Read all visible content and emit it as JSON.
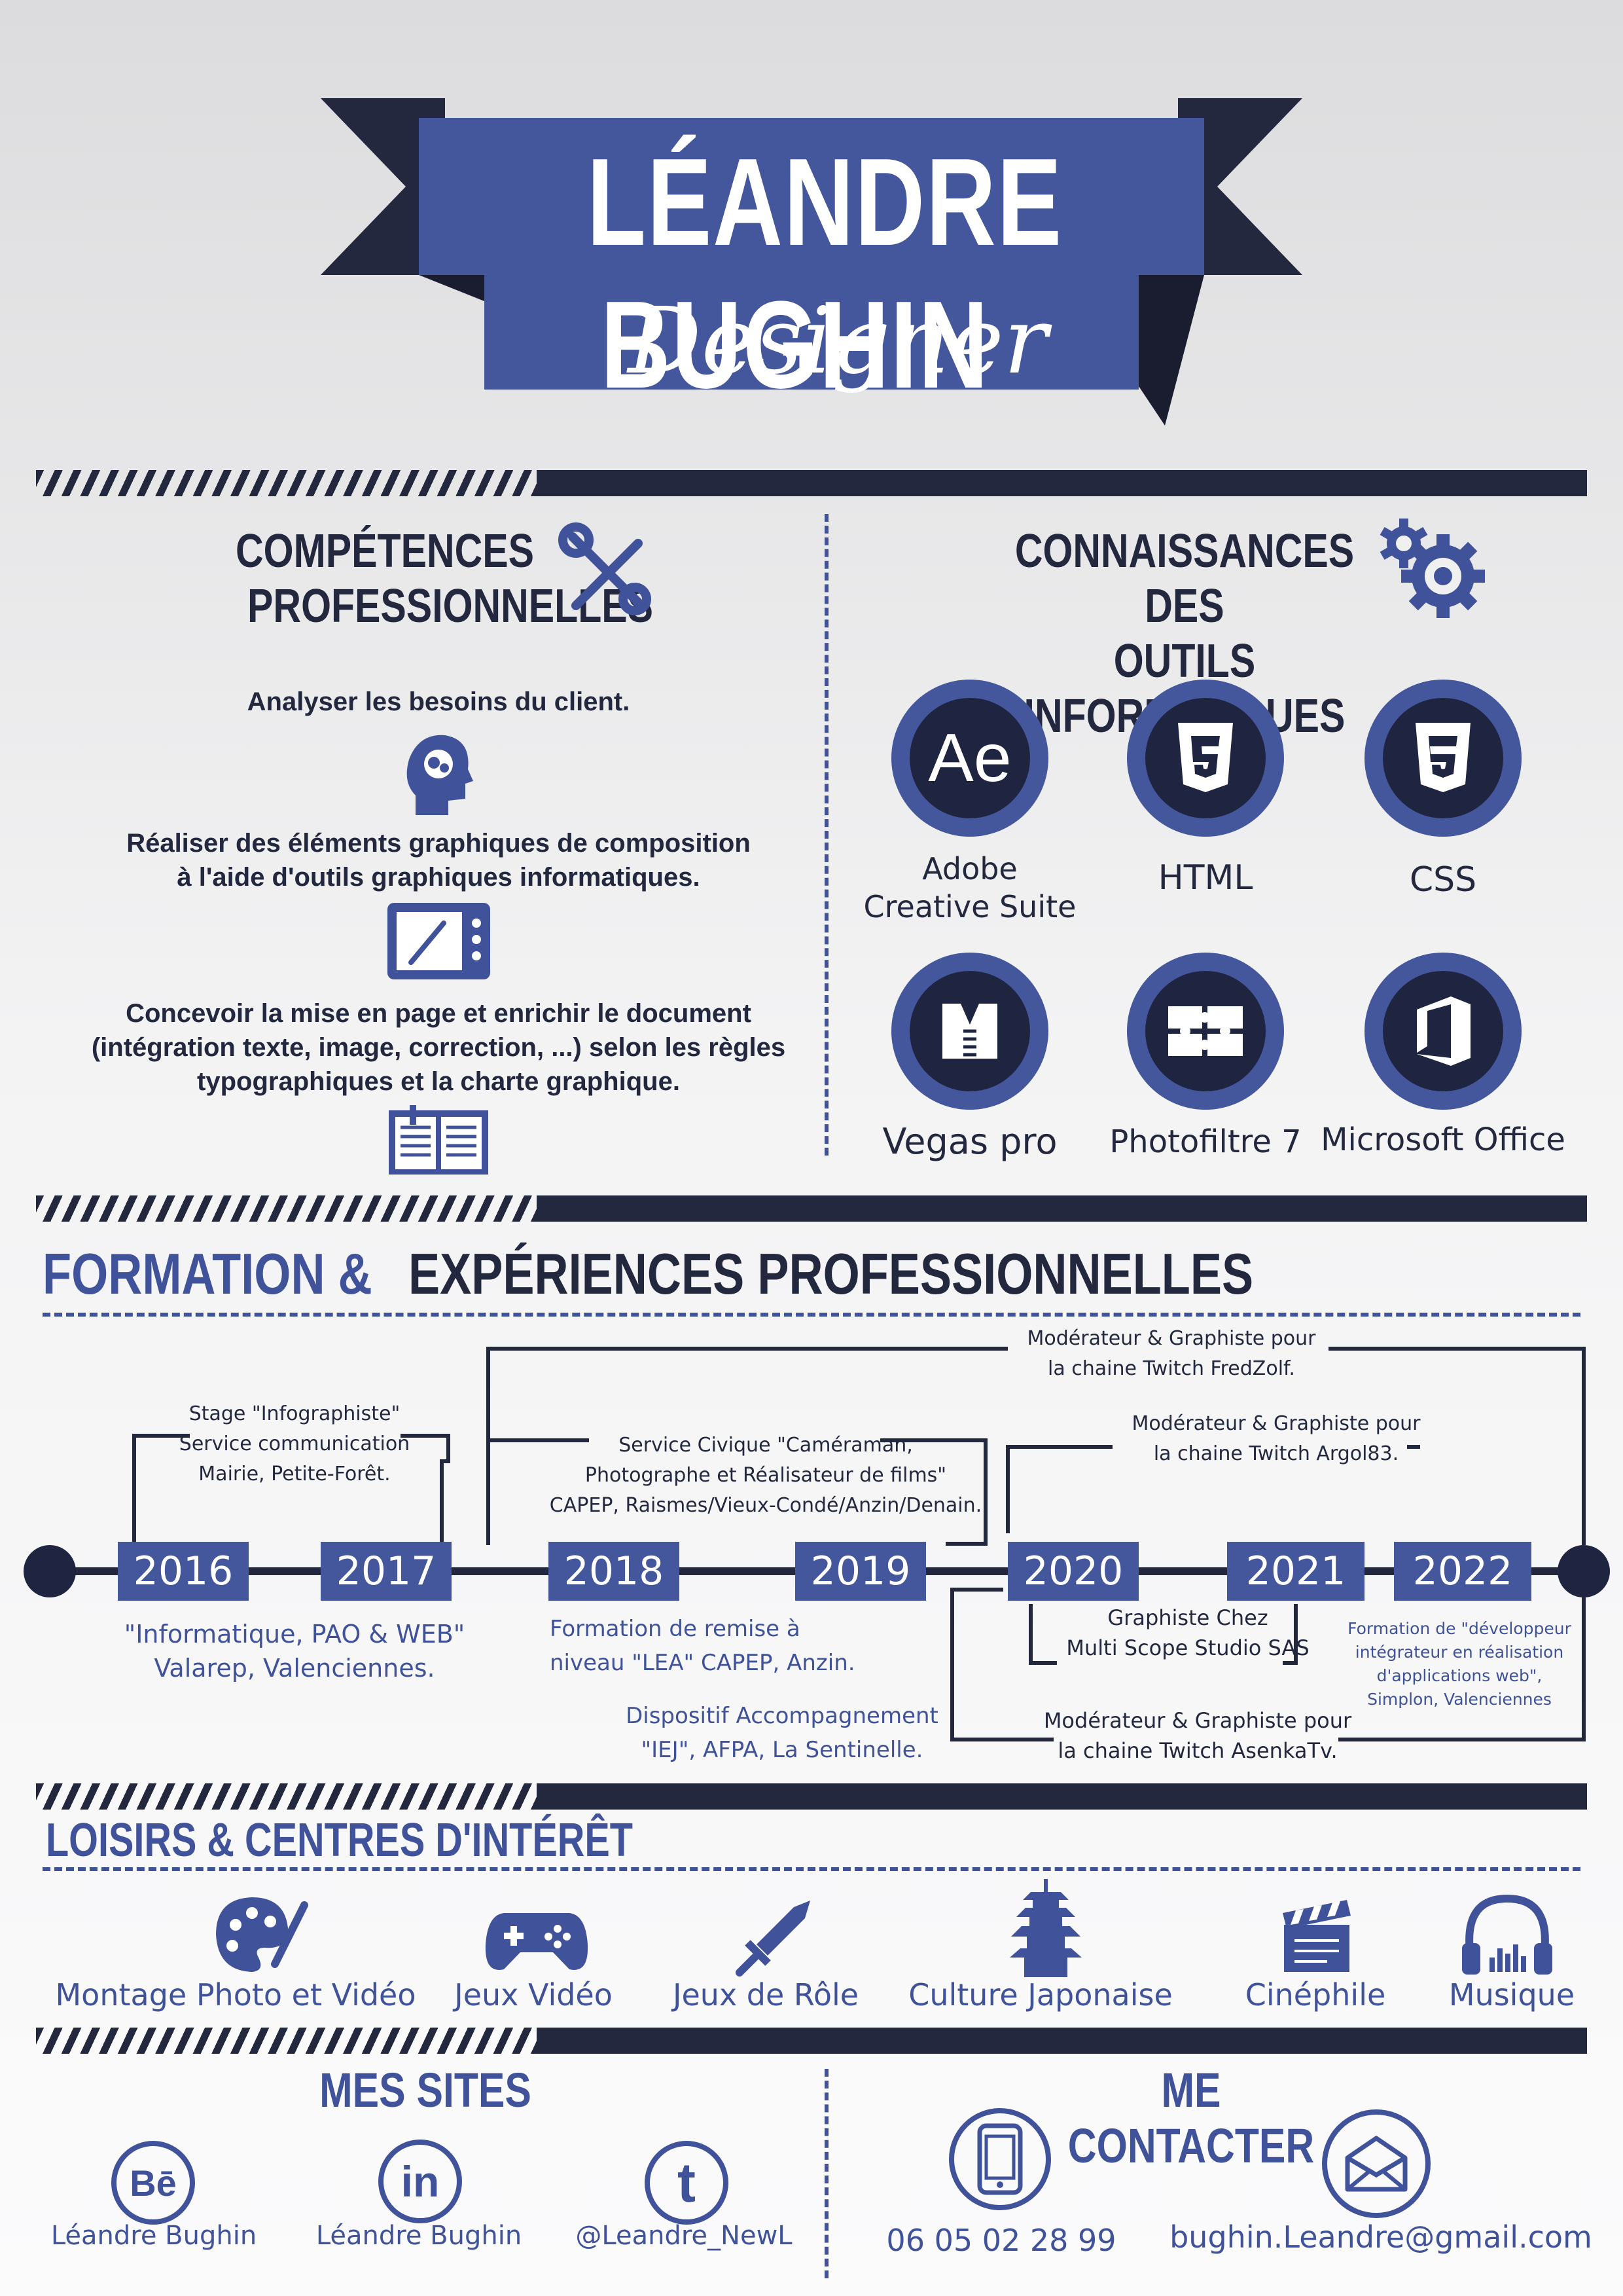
{
  "header": {
    "first_name": "LÉANDRE",
    "last_name": "BUGHIN",
    "role": "Designer"
  },
  "skills": {
    "title_line1": "COMPÉTENCES",
    "title_line2": "PROFESSIONNELLES",
    "items": [
      "Analyser les besoins du client.",
      "Réaliser des éléments graphiques de composition",
      "à l'aide d'outils graphiques informatiques.",
      "Concevoir la mise en page et enrichir le document",
      "(intégration texte, image, correction, ...) selon les règles",
      "typographiques et la charte graphique."
    ]
  },
  "tools": {
    "title_line1": "CONNAISSANCES DES",
    "title_line2": "OUTILS INFORMATIQUES",
    "ae_glyph": "Ae",
    "items": [
      {
        "label1": "Adobe",
        "label2": "Creative Suite",
        "icon": "adobe-ae-icon"
      },
      {
        "label1": "HTML",
        "label2": "",
        "icon": "html5-icon"
      },
      {
        "label1": "CSS",
        "label2": "",
        "icon": "css3-icon"
      },
      {
        "label1": "Vegas pro",
        "label2": "",
        "icon": "vegas-icon"
      },
      {
        "label1": "Photofiltre 7",
        "label2": "",
        "icon": "puzzle-icon"
      },
      {
        "label1": "Microsoft Office",
        "label2": "",
        "icon": "office-icon"
      }
    ]
  },
  "experience": {
    "title_blue": "FORMATION &",
    "title_dark": "EXPÉRIENCES PROFESSIONNELLES",
    "years": [
      "2016",
      "2017",
      "2018",
      "2019",
      "2020",
      "2021",
      "2022"
    ],
    "above": {
      "stage_1": "Stage \"Infographiste\"",
      "stage_2": "Service communication",
      "stage_3": "Mairie, Petite-Forêt.",
      "civique_1": "Service Civique \"Caméraman,",
      "civique_2": "Photographe et Réalisateur de films\"",
      "civique_3": "CAPEP, Raismes/Vieux-Condé/Anzin/Denain.",
      "fred_1": "Modérateur & Graphiste pour",
      "fred_2": "la chaine Twitch FredZolf.",
      "argo_1": "Modérateur & Graphiste pour",
      "argo_2": "la chaine Twitch Argol83."
    },
    "below": {
      "info_1": "\"Informatique, PAO & WEB\"",
      "info_2": "Valarep, Valenciennes.",
      "remise_1": "Formation de remise à",
      "remise_2": "niveau \"LEA\" CAPEP, Anzin.",
      "iej_1": "Dispositif Accompagnement",
      "iej_2": "\"IEJ\", AFPA, La Sentinelle.",
      "multi_1": "Graphiste Chez",
      "multi_2": "Multi Scope Studio SAS",
      "asenka_1": "Modérateur & Graphiste pour",
      "asenka_2": "la chaine Twitch AsenkaTv.",
      "dev_1": "Formation de \"développeur",
      "dev_2": "intégrateur en réalisation",
      "dev_3": "d'applications web\",",
      "dev_4": "Simplon, Valenciennes"
    }
  },
  "hobbies": {
    "title": "LOISIRS & CENTRES D'INTÉRÊT",
    "items": [
      {
        "label": "Montage Photo et Vidéo",
        "icon": "palette-icon"
      },
      {
        "label": "Jeux Vidéo",
        "icon": "gamepad-icon"
      },
      {
        "label": "Jeux de Rôle",
        "icon": "sword-icon"
      },
      {
        "label": "Culture Japonaise",
        "icon": "pagoda-icon"
      },
      {
        "label": "Cinéphile",
        "icon": "clapperboard-icon"
      },
      {
        "label": "Musique",
        "icon": "headphones-icon"
      }
    ]
  },
  "sites": {
    "title": "MES SITES",
    "items": [
      {
        "label": "Léandre Bughin",
        "glyph": "Bē",
        "icon": "behance-icon"
      },
      {
        "label": "Léandre Bughin",
        "glyph": "in",
        "icon": "linkedin-icon"
      },
      {
        "label": "@Leandre_NewL",
        "glyph": "t",
        "icon": "twitter-icon"
      }
    ]
  },
  "contact": {
    "title": "ME CONTACTER",
    "phone": "06 05 02 28 99",
    "email": "bughin.Leandre@gmail.com"
  },
  "colors": {
    "navy": "#23283f",
    "blue": "#3f529a",
    "circle_blue": "#44569c"
  }
}
